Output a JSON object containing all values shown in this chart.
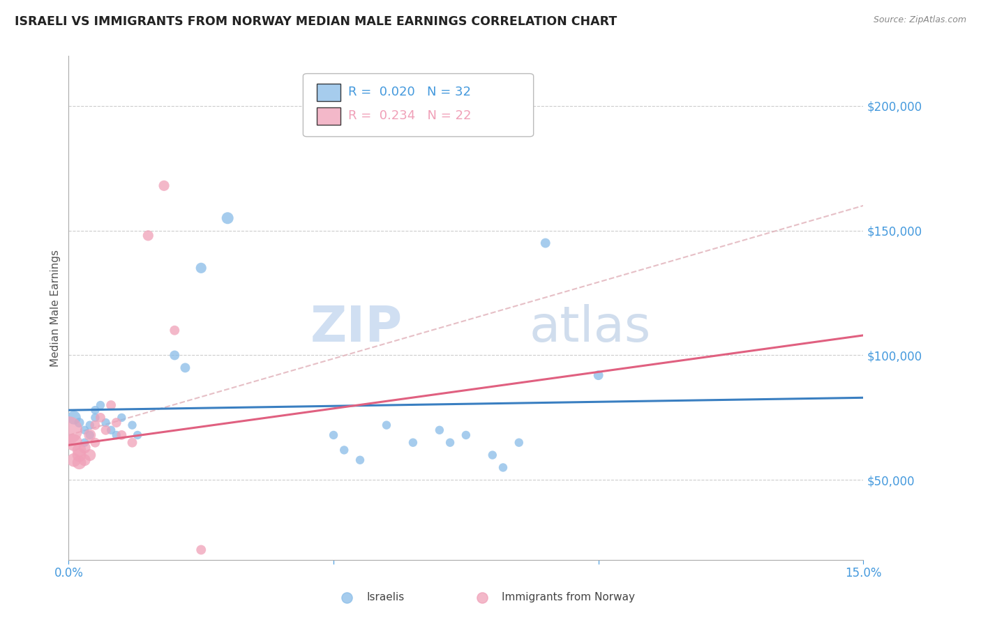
{
  "title": "ISRAELI VS IMMIGRANTS FROM NORWAY MEDIAN MALE EARNINGS CORRELATION CHART",
  "source": "Source: ZipAtlas.com",
  "ylabel": "Median Male Earnings",
  "xlim": [
    0.0,
    0.15
  ],
  "ylim": [
    18000,
    220000
  ],
  "yticks": [
    50000,
    100000,
    150000,
    200000
  ],
  "ytick_labels": [
    "$50,000",
    "$100,000",
    "$150,000",
    "$200,000"
  ],
  "xticks": [
    0.0,
    0.05,
    0.1,
    0.15
  ],
  "xtick_labels": [
    "0.0%",
    "",
    "",
    "15.0%"
  ],
  "background_color": "#ffffff",
  "watermark_zip": "ZIP",
  "watermark_atlas": "atlas",
  "legend_line1": "R =  0.020   N = 32",
  "legend_line2": "R =  0.234   N = 22",
  "israeli_color": "#88bce8",
  "norway_color": "#f0a0b8",
  "israeli_line_color": "#3a7fc1",
  "norway_line_color": "#e06080",
  "dashed_color": "#e0b0b8",
  "axis_tick_color": "#4499dd",
  "ylabel_color": "#555555",
  "israelis_label": "Israelis",
  "norway_label": "Immigrants from Norway",
  "israeli_points": [
    [
      0.001,
      75000
    ],
    [
      0.002,
      73000
    ],
    [
      0.003,
      70000
    ],
    [
      0.003,
      65000
    ],
    [
      0.004,
      68000
    ],
    [
      0.004,
      72000
    ],
    [
      0.005,
      78000
    ],
    [
      0.005,
      75000
    ],
    [
      0.006,
      80000
    ],
    [
      0.007,
      73000
    ],
    [
      0.008,
      70000
    ],
    [
      0.009,
      68000
    ],
    [
      0.01,
      75000
    ],
    [
      0.012,
      72000
    ],
    [
      0.013,
      68000
    ],
    [
      0.02,
      100000
    ],
    [
      0.022,
      95000
    ],
    [
      0.025,
      135000
    ],
    [
      0.03,
      155000
    ],
    [
      0.05,
      68000
    ],
    [
      0.052,
      62000
    ],
    [
      0.055,
      58000
    ],
    [
      0.06,
      72000
    ],
    [
      0.065,
      65000
    ],
    [
      0.07,
      70000
    ],
    [
      0.072,
      65000
    ],
    [
      0.075,
      68000
    ],
    [
      0.08,
      60000
    ],
    [
      0.082,
      55000
    ],
    [
      0.085,
      65000
    ],
    [
      0.09,
      145000
    ],
    [
      0.1,
      92000
    ]
  ],
  "israeli_sizes": [
    200,
    100,
    80,
    80,
    80,
    80,
    80,
    80,
    80,
    80,
    80,
    80,
    80,
    80,
    80,
    100,
    100,
    120,
    150,
    80,
    80,
    80,
    80,
    80,
    80,
    80,
    80,
    80,
    80,
    80,
    100,
    100
  ],
  "norway_points": [
    [
      0.0,
      70000
    ],
    [
      0.001,
      65000
    ],
    [
      0.001,
      58000
    ],
    [
      0.002,
      62000
    ],
    [
      0.002,
      60000
    ],
    [
      0.002,
      57000
    ],
    [
      0.003,
      63000
    ],
    [
      0.003,
      58000
    ],
    [
      0.004,
      68000
    ],
    [
      0.004,
      60000
    ],
    [
      0.005,
      72000
    ],
    [
      0.005,
      65000
    ],
    [
      0.006,
      75000
    ],
    [
      0.007,
      70000
    ],
    [
      0.008,
      80000
    ],
    [
      0.009,
      73000
    ],
    [
      0.01,
      68000
    ],
    [
      0.012,
      65000
    ],
    [
      0.015,
      148000
    ],
    [
      0.018,
      168000
    ],
    [
      0.02,
      110000
    ],
    [
      0.025,
      22000
    ]
  ],
  "norway_sizes": [
    800,
    300,
    200,
    200,
    200,
    200,
    150,
    150,
    150,
    150,
    100,
    100,
    100,
    100,
    100,
    100,
    100,
    100,
    120,
    120,
    100,
    100
  ],
  "israeli_line_x": [
    0.0,
    0.15
  ],
  "israeli_line_y": [
    78000,
    83000
  ],
  "norway_line_x": [
    0.0,
    0.15
  ],
  "norway_line_y": [
    64000,
    108000
  ],
  "dashed_line_x": [
    0.0,
    0.15
  ],
  "dashed_line_y": [
    68000,
    160000
  ]
}
